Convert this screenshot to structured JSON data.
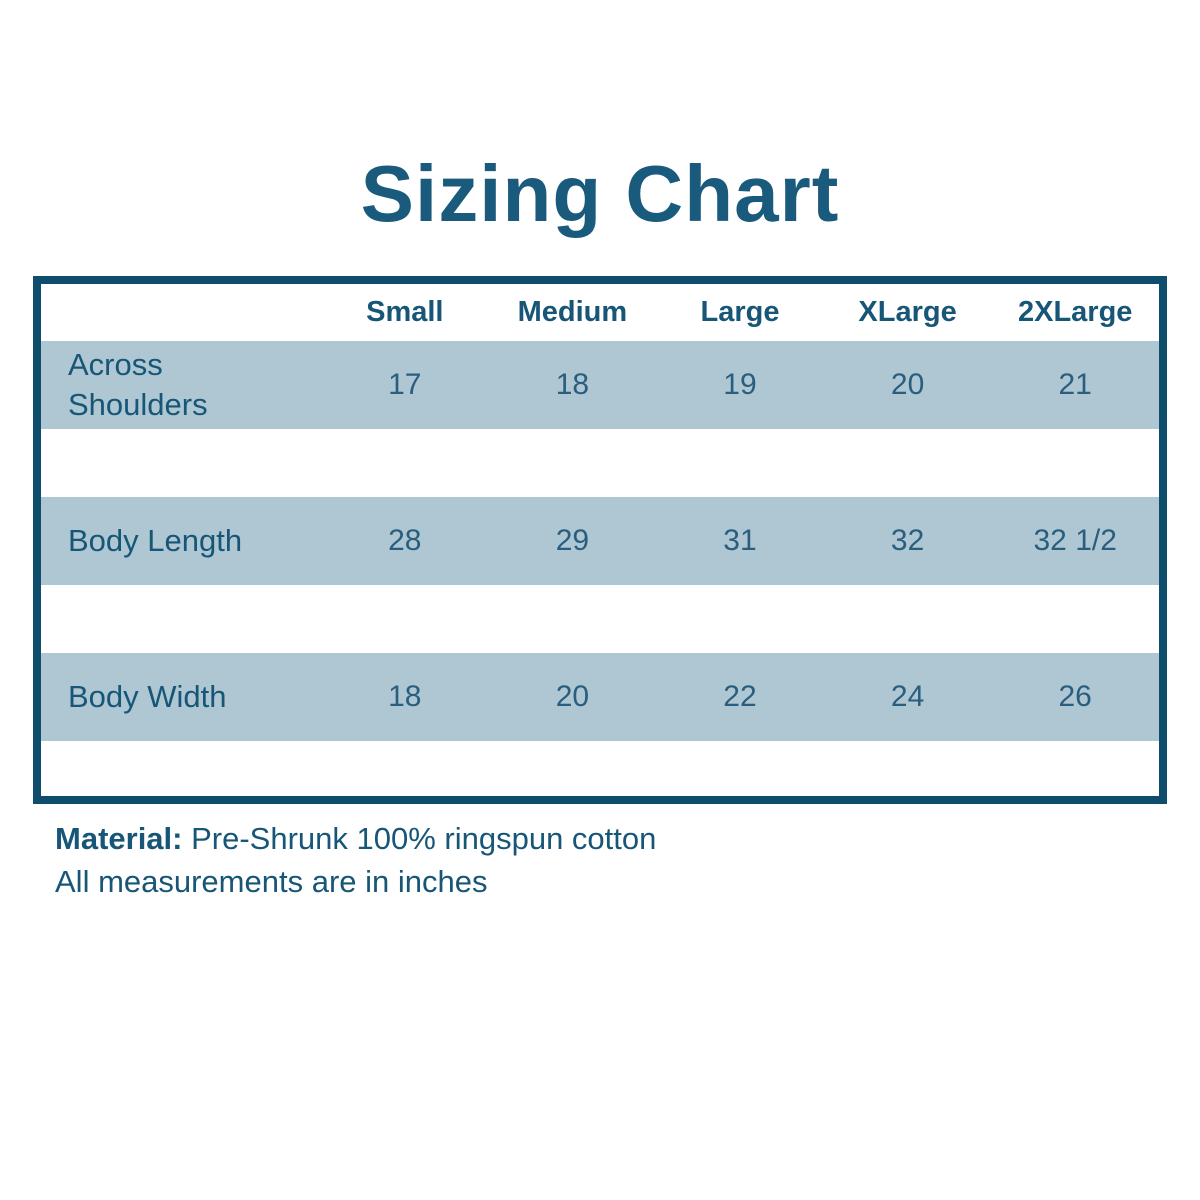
{
  "page": {
    "title": "Sizing Chart"
  },
  "chart_data": {
    "type": "table",
    "title": "Sizing Chart",
    "columns": [
      "",
      "Small",
      "Medium",
      "Large",
      "XLarge",
      "2XLarge"
    ],
    "rows": [
      [
        "Across Shoulders",
        "17",
        "18",
        "19",
        "20",
        "21"
      ],
      [
        "Body Length",
        "28",
        "29",
        "31",
        "32",
        "32 1/2"
      ],
      [
        "Body Width",
        "18",
        "20",
        "22",
        "24",
        "26"
      ]
    ],
    "notes": [
      "Material: Pre-Shrunk 100% ringspun cotton",
      "All measurements are in inches"
    ]
  },
  "table": {
    "size_headers": [
      "Small",
      "Medium",
      "Large",
      "XLarge",
      "2XLarge"
    ],
    "rows": [
      {
        "label": "Across Shoulders",
        "values": [
          "17",
          "18",
          "19",
          "20",
          "21"
        ]
      },
      {
        "label": "Body Length",
        "values": [
          "28",
          "29",
          "31",
          "32",
          "32 1/2"
        ]
      },
      {
        "label": "Body Width",
        "values": [
          "18",
          "20",
          "22",
          "24",
          "26"
        ]
      }
    ]
  },
  "footer": {
    "material_label": "Material:",
    "material_text": "Pre-Shrunk 100% ringspun cotton",
    "measurements_note": "All measurements are in inches"
  },
  "colors": {
    "text_dark_teal": "#1a5a7c",
    "table_border": "#0f4d6d",
    "row_stripe": "#aec7d3",
    "background": "#ffffff"
  }
}
